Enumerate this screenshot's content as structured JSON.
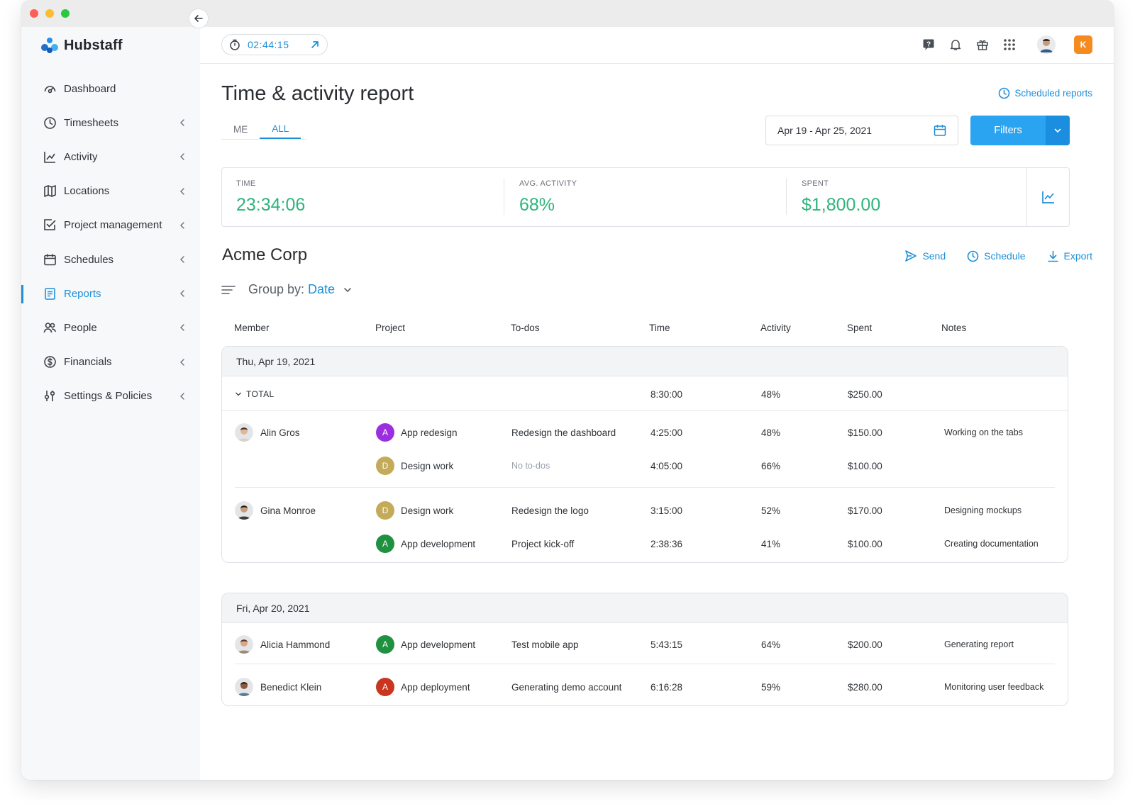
{
  "app": {
    "name": "Hubstaff"
  },
  "timer": {
    "value": "02:44:15"
  },
  "org_badge": "K",
  "sidebar": {
    "items": [
      {
        "label": "Dashboard",
        "icon": "dashboard-icon",
        "chevron": false,
        "active": false
      },
      {
        "label": "Timesheets",
        "icon": "clock-icon",
        "chevron": true,
        "active": false
      },
      {
        "label": "Activity",
        "icon": "activity-chart-icon",
        "chevron": true,
        "active": false
      },
      {
        "label": "Locations",
        "icon": "map-icon",
        "chevron": true,
        "active": false
      },
      {
        "label": "Project management",
        "icon": "checkbox-icon",
        "chevron": true,
        "active": false
      },
      {
        "label": "Schedules",
        "icon": "calendar-icon",
        "chevron": true,
        "active": false
      },
      {
        "label": "Reports",
        "icon": "report-icon",
        "chevron": true,
        "active": true
      },
      {
        "label": "People",
        "icon": "people-icon",
        "chevron": true,
        "active": false
      },
      {
        "label": "Financials",
        "icon": "dollar-icon",
        "chevron": true,
        "active": false
      },
      {
        "label": "Settings & Policies",
        "icon": "settings-sliders-icon",
        "chevron": true,
        "active": false
      }
    ]
  },
  "page": {
    "title": "Time & activity report",
    "scheduled_reports": "Scheduled reports",
    "tabs": [
      "ME",
      "ALL"
    ],
    "active_tab": "ALL",
    "date_range": "Apr 19 - Apr 25, 2021",
    "filters_label": "Filters"
  },
  "summary": {
    "time": {
      "label": "TIME",
      "value": "23:34:06"
    },
    "activity": {
      "label": "AVG. ACTIVITY",
      "value": "68%"
    },
    "spent": {
      "label": "SPENT",
      "value": "$1,800.00"
    }
  },
  "report": {
    "org": "Acme Corp",
    "actions": {
      "send": "Send",
      "schedule": "Schedule",
      "export": "Export"
    },
    "group_by_label": "Group by:",
    "group_by_value": "Date",
    "columns": [
      "Member",
      "Project",
      "To-dos",
      "Time",
      "Activity",
      "Spent",
      "Notes"
    ],
    "days": [
      {
        "date": "Thu, Apr 19, 2021",
        "total": {
          "label": "TOTAL",
          "time": "8:30:00",
          "activity": "48%",
          "spent": "$250.00"
        },
        "rows": [
          {
            "member": "Alin Gros",
            "project": "App redesign",
            "badge": "A",
            "badge_color": "#9b2fe0",
            "todo": "Redesign the dashboard",
            "todo_muted": false,
            "time": "4:25:00",
            "activity": "48%",
            "spent": "$150.00",
            "notes": "Working on the tabs"
          },
          {
            "member": "",
            "project": "Design work",
            "badge": "D",
            "badge_color": "#c3ab5a",
            "todo": "No to-dos",
            "todo_muted": true,
            "time": "4:05:00",
            "activity": "66%",
            "spent": "$100.00",
            "notes": ""
          },
          {
            "member": "Gina Monroe",
            "project": "Design work",
            "badge": "D",
            "badge_color": "#c3ab5a",
            "todo": "Redesign the logo",
            "todo_muted": false,
            "time": "3:15:00",
            "activity": "52%",
            "spent": "$170.00",
            "notes": "Designing mockups"
          },
          {
            "member": "",
            "project": "App development",
            "badge": "A",
            "badge_color": "#1f9140",
            "todo": "Project kick-off",
            "todo_muted": false,
            "time": "2:38:36",
            "activity": "41%",
            "spent": "$100.00",
            "notes": "Creating documentation"
          }
        ]
      },
      {
        "date": "Fri, Apr 20, 2021",
        "rows": [
          {
            "member": "Alicia Hammond",
            "project": "App development",
            "badge": "A",
            "badge_color": "#1f9140",
            "todo": "Test mobile app",
            "todo_muted": false,
            "time": "5:43:15",
            "activity": "64%",
            "spent": "$200.00",
            "notes": "Generating report"
          },
          {
            "member": "Benedict Klein",
            "project": "App deployment",
            "badge": "A",
            "badge_color": "#c9361f",
            "todo": "Generating demo account",
            "todo_muted": false,
            "time": "6:16:28",
            "activity": "59%",
            "spent": "$280.00",
            "notes": "Monitoring user feedback"
          }
        ]
      }
    ]
  },
  "colors": {
    "accent": "#1e8fd8",
    "positive": "#2fb47c",
    "filters_button": "#2aa3f0"
  }
}
